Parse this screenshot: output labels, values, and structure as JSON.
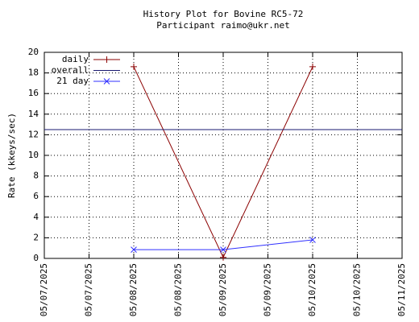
{
  "chart_data": {
    "type": "line",
    "title": "History Plot for Bovine RC5-72",
    "subtitle": "Participant raimo@ukr.net",
    "y_label": "Rate (kkeys/sec)",
    "xlim": [
      "05/07/2025",
      "05/11/2025"
    ],
    "xticks": [
      "05/07/2025",
      "05/07/2025",
      "05/08/2025",
      "05/08/2025",
      "05/09/2025",
      "05/09/2025",
      "05/10/2025",
      "05/10/2025",
      "05/11/2025"
    ],
    "ylim": [
      0,
      20
    ],
    "yticks": [
      0,
      2,
      4,
      6,
      8,
      10,
      12,
      14,
      16,
      18,
      20
    ],
    "grid": true,
    "legend": "top-left",
    "series": [
      {
        "name": "daily",
        "color": "#8b0000",
        "marker": "plus",
        "x": [
          "05/08/2025",
          "05/09/2025",
          "05/10/2025"
        ],
        "values": [
          18.6,
          0.1,
          18.6
        ]
      },
      {
        "name": "overall",
        "color": "#191970",
        "marker": "none",
        "x": [
          "05/07/2025",
          "05/11/2025"
        ],
        "values": [
          12.5,
          12.5
        ]
      },
      {
        "name": "21 day",
        "color": "#3030ff",
        "marker": "cross",
        "x": [
          "05/08/2025",
          "05/09/2025",
          "05/10/2025"
        ],
        "values": [
          0.85,
          0.85,
          1.8
        ]
      }
    ]
  }
}
